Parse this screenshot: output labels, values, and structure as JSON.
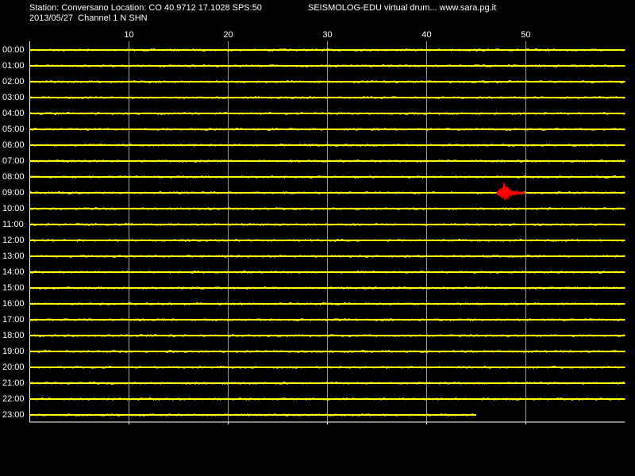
{
  "chart_data": {
    "type": "drum",
    "title": "Station: Conversano Location: CO 40.9712 17.1028 SPS:50",
    "subtitle": "2013/05/27  Channel 1 N SHN",
    "source": "SEISMOLOG-EDU virtual drum... www.sara.pg.it",
    "xlim": [
      0,
      60
    ],
    "xticks": [
      10,
      20,
      30,
      40,
      50
    ],
    "grid": true,
    "color": "#ffff00",
    "categories": [
      "00:00",
      "01:00",
      "02:00",
      "03:00",
      "04:00",
      "05:00",
      "06:00",
      "07:00",
      "08:00",
      "09:00",
      "10:00",
      "11:00",
      "12:00",
      "13:00",
      "14:00",
      "15:00",
      "16:00",
      "17:00",
      "18:00",
      "19:00",
      "20:00",
      "21:00",
      "22:00",
      "23:00"
    ],
    "trace_end": [
      60,
      60,
      60,
      60,
      60,
      60,
      60,
      60,
      60,
      60,
      60,
      60,
      60,
      60,
      60,
      60,
      60,
      60,
      60,
      60,
      60,
      60,
      60,
      45
    ],
    "events": [
      {
        "row": 9,
        "start": 47,
        "end": 50,
        "color": "#ff0000"
      }
    ]
  }
}
